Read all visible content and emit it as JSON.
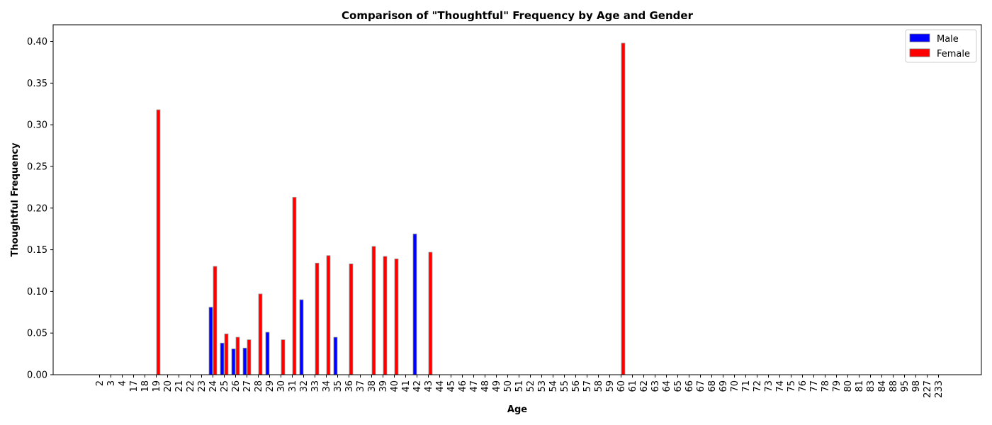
{
  "chart_data": {
    "type": "bar",
    "title": "Comparison of \"Thoughtful\" Frequency by Age and Gender",
    "xlabel": "Age",
    "ylabel": "Thoughtful Frequency",
    "ylim": [
      0,
      0.42
    ],
    "yticks": [
      "0.00",
      "0.05",
      "0.10",
      "0.15",
      "0.20",
      "0.25",
      "0.30",
      "0.35",
      "0.40"
    ],
    "legend_position": "top-right",
    "categories": [
      "2",
      "3",
      "4",
      "17",
      "18",
      "19",
      "20",
      "21",
      "22",
      "23",
      "24",
      "25",
      "26",
      "27",
      "28",
      "29",
      "30",
      "31",
      "32",
      "33",
      "34",
      "35",
      "36",
      "37",
      "38",
      "39",
      "40",
      "41",
      "42",
      "43",
      "44",
      "45",
      "46",
      "47",
      "48",
      "49",
      "50",
      "51",
      "52",
      "53",
      "54",
      "55",
      "56",
      "57",
      "58",
      "59",
      "60",
      "61",
      "62",
      "63",
      "64",
      "65",
      "66",
      "67",
      "68",
      "69",
      "70",
      "71",
      "72",
      "73",
      "74",
      "75",
      "76",
      "77",
      "78",
      "79",
      "80",
      "81",
      "83",
      "84",
      "88",
      "95",
      "98",
      "227",
      "233"
    ],
    "series": [
      {
        "name": "Male",
        "color": "#0000ff",
        "values": [
          0,
          0,
          0,
          0,
          0,
          0,
          0,
          0,
          0,
          0,
          0.081,
          0.038,
          0.031,
          0.032,
          0,
          0.051,
          0,
          0,
          0.09,
          0,
          0,
          0.045,
          0,
          0,
          0,
          0,
          0,
          0,
          0.169,
          0,
          0,
          0,
          0,
          0,
          0,
          0,
          0,
          0,
          0,
          0,
          0,
          0,
          0,
          0,
          0,
          0,
          0,
          0,
          0,
          0,
          0,
          0,
          0,
          0,
          0,
          0,
          0,
          0,
          0,
          0,
          0,
          0,
          0,
          0,
          0,
          0,
          0,
          0,
          0,
          0,
          0,
          0,
          0,
          0,
          0
        ]
      },
      {
        "name": "Female",
        "color": "#ff0000",
        "values": [
          0,
          0,
          0,
          0,
          0,
          0.318,
          0,
          0,
          0,
          0,
          0.13,
          0.049,
          0.045,
          0.042,
          0.097,
          0,
          0.042,
          0.213,
          0,
          0.134,
          0.143,
          0,
          0.133,
          0,
          0.154,
          0.142,
          0.139,
          0,
          0,
          0.147,
          0,
          0,
          0,
          0,
          0,
          0,
          0,
          0,
          0,
          0,
          0,
          0,
          0,
          0,
          0,
          0,
          0.398,
          0,
          0,
          0,
          0,
          0,
          0,
          0,
          0,
          0,
          0,
          0,
          0,
          0,
          0,
          0,
          0,
          0,
          0,
          0,
          0,
          0,
          0,
          0,
          0,
          0,
          0,
          0,
          0
        ]
      }
    ]
  }
}
